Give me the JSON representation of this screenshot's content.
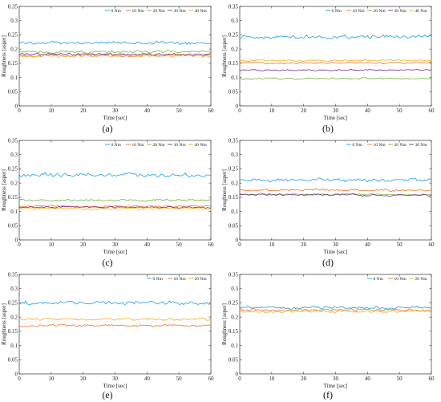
{
  "chart_data": [
    {
      "type": "line",
      "panel": "a",
      "caption": "(a)",
      "xlabel": "Time [sec]",
      "ylabel": "Roughness [asper]",
      "xlim": [
        0,
        60
      ],
      "ylim": [
        0,
        0.35
      ],
      "xticks": [
        "0",
        "10",
        "20",
        "30",
        "40",
        "50",
        "60"
      ],
      "yticks": [
        "0",
        "0.05",
        "0.1",
        "0.15",
        "0.2",
        "0.25",
        "0.3",
        "0.35"
      ],
      "legend_position": "top-right",
      "series": [
        {
          "name": "0 Nm",
          "color": "#1f9fd6",
          "mean": 0.222,
          "amp": 0.006
        },
        {
          "name": "10 Nm",
          "color": "#e8772e",
          "mean": 0.178,
          "amp": 0.006
        },
        {
          "name": "20 Nm",
          "color": "#79b447",
          "mean": 0.19,
          "amp": 0.006
        },
        {
          "name": "30 Nm",
          "color": "#7e2f8e",
          "mean": 0.182,
          "amp": 0.005
        },
        {
          "name": "40 Nm",
          "color": "#edb120",
          "mean": 0.176,
          "amp": 0.006
        }
      ]
    },
    {
      "type": "line",
      "panel": "b",
      "caption": "(b)",
      "xlabel": "Time [sec]",
      "ylabel": "Roughness [asper]",
      "xlim": [
        0,
        60
      ],
      "ylim": [
        0,
        0.35
      ],
      "xticks": [
        "0",
        "10",
        "20",
        "30",
        "40",
        "50",
        "60"
      ],
      "yticks": [
        "0",
        "0.05",
        "0.1",
        "0.15",
        "0.2",
        "0.25",
        "0.3",
        "0.35"
      ],
      "legend_position": "top-right",
      "series": [
        {
          "name": "0 Nm",
          "color": "#1f9fd6",
          "mean": 0.243,
          "amp": 0.008
        },
        {
          "name": "10 Nm",
          "color": "#e8772e",
          "mean": 0.152,
          "amp": 0.004
        },
        {
          "name": "20 Nm",
          "color": "#79b447",
          "mean": 0.096,
          "amp": 0.004
        },
        {
          "name": "30 Nm",
          "color": "#7e2f8e",
          "mean": 0.126,
          "amp": 0.003
        },
        {
          "name": "40 Nm",
          "color": "#edb120",
          "mean": 0.16,
          "amp": 0.004
        }
      ]
    },
    {
      "type": "line",
      "panel": "c",
      "caption": "(c)",
      "xlabel": "Time [sec]",
      "ylabel": "Roughness [asper]",
      "xlim": [
        0,
        60
      ],
      "ylim": [
        0,
        0.35
      ],
      "xticks": [
        "0",
        "10",
        "20",
        "30",
        "40",
        "50",
        "60"
      ],
      "yticks": [
        "0",
        "0.05",
        "0.1",
        "0.15",
        "0.2",
        "0.25",
        "0.3",
        "0.35"
      ],
      "legend_position": "top-right",
      "series": [
        {
          "name": "0 Nm",
          "color": "#1f9fd6",
          "mean": 0.228,
          "amp": 0.008
        },
        {
          "name": "10 Nm",
          "color": "#e8772e",
          "mean": 0.118,
          "amp": 0.004
        },
        {
          "name": "20 Nm",
          "color": "#79b447",
          "mean": 0.14,
          "amp": 0.004
        },
        {
          "name": "30 Nm",
          "color": "#7e2f8e",
          "mean": 0.115,
          "amp": 0.004
        },
        {
          "name": "40 Nm",
          "color": "#edb120",
          "mean": 0.11,
          "amp": 0.004
        }
      ]
    },
    {
      "type": "line",
      "panel": "d",
      "caption": "(d)",
      "xlabel": "Time [sec]",
      "ylabel": "Roughness [asper]",
      "xlim": [
        0,
        60
      ],
      "ylim": [
        0,
        0.35
      ],
      "xticks": [
        "0",
        "10",
        "20",
        "30",
        "40",
        "50",
        "60"
      ],
      "yticks": [
        "0",
        "0.05",
        "0.1",
        "0.15",
        "0.2",
        "0.25",
        "0.3",
        "0.35"
      ],
      "legend_position": "top-right",
      "series": [
        {
          "name": "0 Nm",
          "color": "#1f9fd6",
          "mean": 0.21,
          "amp": 0.007
        },
        {
          "name": "10 Nm",
          "color": "#e8772e",
          "mean": 0.175,
          "amp": 0.005
        },
        {
          "name": "20 Nm",
          "color": "#79b447",
          "mean": 0.16,
          "amp": 0.004
        },
        {
          "name": "30 Nm",
          "color": "#7e2f8e",
          "mean": 0.158,
          "amp": 0.004
        }
      ]
    },
    {
      "type": "line",
      "panel": "e",
      "caption": "(e)",
      "xlabel": "Time [sec]",
      "ylabel": "Roughness [asper]",
      "xlim": [
        0,
        60
      ],
      "ylim": [
        0,
        0.35
      ],
      "xticks": [
        "0",
        "10",
        "20",
        "30",
        "40",
        "50",
        "60"
      ],
      "yticks": [
        "0",
        "0.05",
        "0.1",
        "0.15",
        "0.2",
        "0.25",
        "0.3",
        "0.35"
      ],
      "legend_position": "top-right",
      "series": [
        {
          "name": "0 Nm",
          "color": "#1f9fd6",
          "mean": 0.25,
          "amp": 0.008
        },
        {
          "name": "10 Nm",
          "color": "#e8772e",
          "mean": 0.17,
          "amp": 0.005
        },
        {
          "name": "20 Nm",
          "color": "#edb120",
          "mean": 0.192,
          "amp": 0.005
        }
      ]
    },
    {
      "type": "line",
      "panel": "f",
      "caption": "(f)",
      "xlabel": "Time [sec]",
      "ylabel": "Roughness [asper]",
      "xlim": [
        0,
        60
      ],
      "ylim": [
        0,
        0.35
      ],
      "xticks": [
        "0",
        "10",
        "20",
        "30",
        "40",
        "50",
        "60"
      ],
      "yticks": [
        "0",
        "0.05",
        "0.1",
        "0.15",
        "0.2",
        "0.25",
        "0.3",
        "0.35"
      ],
      "legend_position": "top-right",
      "series": [
        {
          "name": "0 Nm",
          "color": "#1f9fd6",
          "mean": 0.233,
          "amp": 0.006
        },
        {
          "name": "10 Nm",
          "color": "#e8772e",
          "mean": 0.225,
          "amp": 0.006
        },
        {
          "name": "20 Nm",
          "color": "#edb120",
          "mean": 0.22,
          "amp": 0.006
        }
      ]
    }
  ]
}
